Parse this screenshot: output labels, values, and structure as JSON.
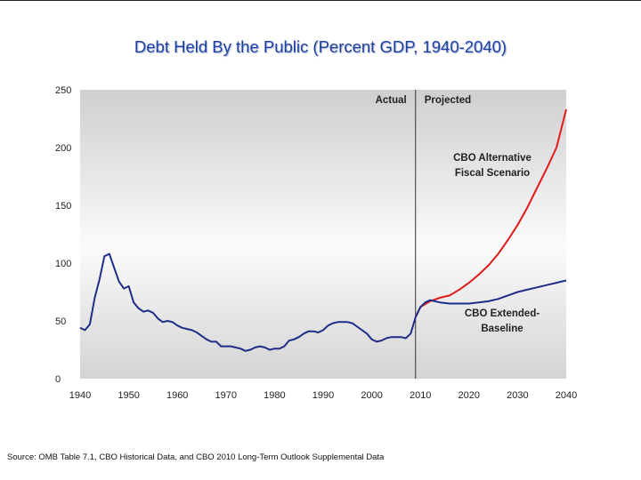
{
  "chart_data": {
    "type": "line",
    "title": "Debt Held By the Public (Percent GDP, 1940-2040)",
    "xlabel": "",
    "ylabel": "",
    "xlim": [
      1940,
      2040
    ],
    "ylim": [
      0,
      250
    ],
    "xticks": [
      1940,
      1950,
      1960,
      1970,
      1980,
      1990,
      2000,
      2010,
      2020,
      2030,
      2040
    ],
    "yticks": [
      0,
      50,
      100,
      150,
      200,
      250
    ],
    "divider": {
      "x": 2009,
      "left_label": "Actual",
      "right_label": "Projected"
    },
    "series": [
      {
        "name": "Actual",
        "color": "#1f2d87",
        "x": [
          1940,
          1941,
          1942,
          1943,
          1944,
          1945,
          1946,
          1947,
          1948,
          1949,
          1950,
          1951,
          1952,
          1953,
          1954,
          1955,
          1956,
          1957,
          1958,
          1959,
          1960,
          1961,
          1962,
          1963,
          1964,
          1965,
          1966,
          1967,
          1968,
          1969,
          1970,
          1971,
          1972,
          1973,
          1974,
          1975,
          1976,
          1977,
          1978,
          1979,
          1980,
          1981,
          1982,
          1983,
          1984,
          1985,
          1986,
          1987,
          1988,
          1989,
          1990,
          1991,
          1992,
          1993,
          1994,
          1995,
          1996,
          1997,
          1998,
          1999,
          2000,
          2001,
          2002,
          2003,
          2004,
          2005,
          2006,
          2007,
          2008,
          2009
        ],
        "y": [
          44,
          42,
          47,
          70,
          86,
          106,
          108,
          96,
          84,
          78,
          80,
          66,
          61,
          58,
          59,
          57,
          52,
          49,
          50,
          49,
          46,
          44,
          43,
          42,
          40,
          37,
          34,
          32,
          32,
          28,
          28,
          28,
          27,
          26,
          24,
          25,
          27,
          28,
          27,
          25,
          26,
          26,
          28,
          33,
          34,
          36,
          39,
          41,
          41,
          40,
          42,
          46,
          48,
          49,
          49,
          49,
          48,
          45,
          42,
          39,
          34,
          32,
          33,
          35,
          36,
          36,
          36,
          35,
          39,
          53
        ]
      },
      {
        "name": "CBO Alternative Fiscal Scenario",
        "color": "#e01a1a",
        "x": [
          2009,
          2010,
          2012,
          2014,
          2016,
          2018,
          2020,
          2022,
          2024,
          2026,
          2028,
          2030,
          2032,
          2034,
          2036,
          2038,
          2040
        ],
        "y": [
          53,
          62,
          67,
          70,
          72,
          77,
          83,
          90,
          98,
          108,
          120,
          133,
          148,
          165,
          182,
          200,
          233
        ]
      },
      {
        "name": "CBO Extended-Baseline",
        "color": "#1f2d87",
        "x": [
          2009,
          2010,
          2011,
          2012,
          2014,
          2016,
          2018,
          2020,
          2022,
          2024,
          2026,
          2028,
          2030,
          2032,
          2034,
          2036,
          2038,
          2040
        ],
        "y": [
          53,
          62,
          66,
          68,
          66,
          65,
          65,
          65,
          66,
          67,
          69,
          72,
          75,
          77,
          79,
          81,
          83,
          85
        ]
      }
    ],
    "annotations": [
      {
        "lines": [
          "CBO Alternative",
          "Fiscal Scenario"
        ],
        "near_year": 2026,
        "near_value": 185
      },
      {
        "lines": [
          "CBO Extended-",
          "Baseline"
        ],
        "near_year": 2026,
        "near_value": 48
      }
    ]
  },
  "footer": {
    "source": "Source: OMB Table 7.1, CBO Historical Data, and CBO 2010 Long-Term Outlook Supplemental Data"
  }
}
